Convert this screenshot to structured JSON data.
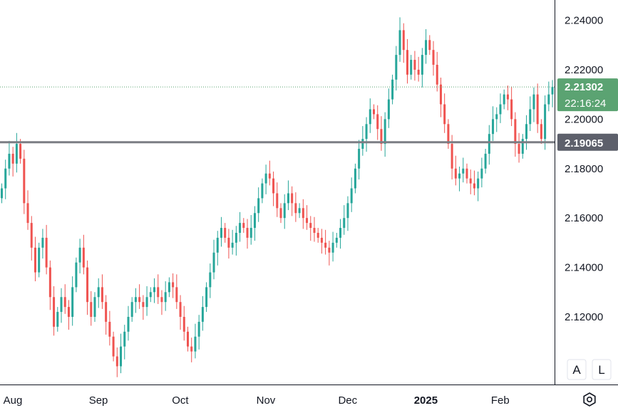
{
  "chart_data": {
    "type": "candlestick",
    "ylim": [
      2.1,
      2.25
    ],
    "y_ticks": [
      "2.24000",
      "2.22000",
      "2.20000",
      "2.18000",
      "2.16000",
      "2.14000",
      "2.12000"
    ],
    "x_ticks": [
      {
        "label": "Aug",
        "index": 0,
        "bold": false
      },
      {
        "label": "Sep",
        "index": 23,
        "bold": false
      },
      {
        "label": "Oct",
        "index": 45,
        "bold": false
      },
      {
        "label": "Nov",
        "index": 68,
        "bold": false
      },
      {
        "label": "Dec",
        "index": 90,
        "bold": false
      },
      {
        "label": "2025",
        "index": 111,
        "bold": true
      },
      {
        "label": "Feb",
        "index": 131,
        "bold": false
      }
    ],
    "horizontal_level": "2.19065",
    "last_price": "2.21302",
    "countdown": "22:16:24",
    "colors": {
      "up": "#26a69a",
      "down": "#ef5350",
      "level_line": "#7b7d84",
      "last_price_badge": "#5ba372",
      "level_badge": "#5d606b"
    },
    "closes": [
      2.172,
      2.18,
      2.186,
      2.182,
      2.19,
      2.184,
      2.166,
      2.158,
      2.148,
      2.138,
      2.148,
      2.152,
      2.14,
      2.128,
      2.116,
      2.122,
      2.128,
      2.124,
      2.12,
      2.132,
      2.142,
      2.148,
      2.14,
      2.126,
      2.12,
      2.128,
      2.132,
      2.126,
      2.118,
      2.112,
      2.104,
      2.1,
      2.108,
      2.114,
      2.12,
      2.126,
      2.128,
      2.126,
      2.124,
      2.128,
      2.13,
      2.132,
      2.128,
      2.126,
      2.13,
      2.134,
      2.132,
      2.126,
      2.12,
      2.114,
      2.108,
      2.106,
      2.112,
      2.118,
      2.124,
      2.132,
      2.138,
      2.146,
      2.152,
      2.156,
      2.152,
      2.148,
      2.15,
      2.154,
      2.158,
      2.156,
      2.152,
      2.156,
      2.162,
      2.168,
      2.174,
      2.178,
      2.176,
      2.17,
      2.164,
      2.16,
      2.166,
      2.17,
      2.166,
      2.162,
      2.164,
      2.16,
      2.158,
      2.156,
      2.154,
      2.152,
      2.15,
      2.148,
      2.146,
      2.15,
      2.152,
      2.156,
      2.16,
      2.166,
      2.172,
      2.18,
      2.188,
      2.192,
      2.198,
      2.204,
      2.202,
      2.196,
      2.19,
      2.2,
      2.208,
      2.216,
      2.226,
      2.236,
      2.228,
      2.218,
      2.224,
      2.22,
      2.218,
      2.226,
      2.232,
      2.228,
      2.222,
      2.214,
      2.206,
      2.198,
      2.19,
      2.18,
      2.176,
      2.178,
      2.18,
      2.176,
      2.174,
      2.172,
      2.176,
      2.18,
      2.186,
      2.194,
      2.2,
      2.202,
      2.206,
      2.21,
      2.208,
      2.2,
      2.19,
      2.186,
      2.192,
      2.198,
      2.204,
      2.21,
      2.198,
      2.192,
      2.206,
      2.21,
      2.21302
    ]
  },
  "buttons": {
    "auto_scale": "A",
    "log_scale": "L"
  },
  "icons": {
    "settings": "gear-icon"
  }
}
